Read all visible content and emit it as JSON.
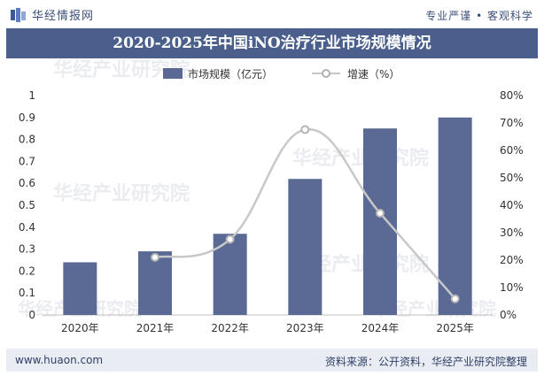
{
  "header": {
    "brand": "华经情报网",
    "slogan": "专业严谨 • 客观科学",
    "title": "2020-2025年中国iNO治疗行业市场规模情况"
  },
  "footer": {
    "site": "www.huaon.com",
    "source": "资料来源：公开资料，华经产业研究院整理"
  },
  "watermark": "华经产业研究院",
  "chart_data": {
    "type": "bar",
    "title": "2020-2025年中国iNO治疗行业市场规模情况",
    "categories": [
      "2020年",
      "2021年",
      "2022年",
      "2023年",
      "2024年",
      "2025年"
    ],
    "series": [
      {
        "name": "市场规模（亿元）",
        "type": "bar",
        "axis": "left",
        "color": "#5a6a94",
        "values": [
          0.24,
          0.29,
          0.37,
          0.62,
          0.85,
          0.9
        ]
      },
      {
        "name": "增速（%）",
        "type": "line",
        "axis": "right",
        "color": "#c8c8c8",
        "values": [
          null,
          21,
          27.6,
          67.6,
          37.1,
          5.9
        ]
      }
    ],
    "y_left": {
      "min": 0,
      "max": 1,
      "ticks": [
        "0",
        "0.1",
        "0.2",
        "0.3",
        "0.4",
        "0.5",
        "0.6",
        "0.7",
        "0.8",
        "0.9",
        "1"
      ]
    },
    "y_right": {
      "min": 0,
      "max": 80,
      "ticks": [
        "0%",
        "10%",
        "20%",
        "30%",
        "40%",
        "50%",
        "60%",
        "70%",
        "80%"
      ]
    },
    "legend": "top-center",
    "grid": false
  }
}
